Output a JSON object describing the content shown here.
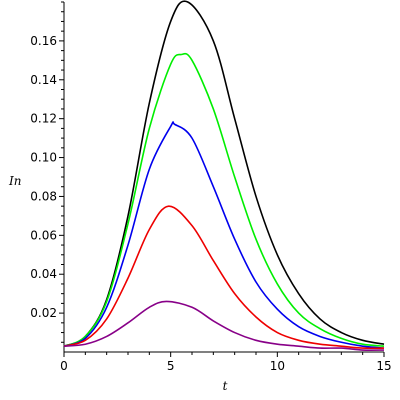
{
  "chart_data": {
    "type": "line",
    "xlabel": "t",
    "ylabel": "In",
    "xlim": [
      0,
      15
    ],
    "ylim": [
      0,
      0.18
    ],
    "x_major_ticks": [
      0,
      5,
      10,
      15
    ],
    "x_minor_step": 1,
    "y_major_ticks": [
      0.02,
      0.04,
      0.06,
      0.08,
      0.1,
      0.12,
      0.14,
      0.16
    ],
    "y_tick_labels": [
      "0.02",
      "0.04",
      "0.06",
      "0.08",
      "0.10",
      "0.12",
      "0.14",
      "0.16"
    ],
    "y_minor_step": 0.005,
    "grid": false,
    "legend": "none",
    "series": [
      {
        "color": "#000000",
        "x": [
          0,
          1,
          2,
          3,
          4,
          5,
          5.8,
          7,
          8,
          9,
          10,
          11,
          12,
          13,
          14,
          15
        ],
        "y": [
          0.003,
          0.008,
          0.027,
          0.07,
          0.128,
          0.17,
          0.18,
          0.16,
          0.12,
          0.08,
          0.05,
          0.03,
          0.017,
          0.01,
          0.006,
          0.004
        ]
      },
      {
        "color": "#00ee00",
        "x": [
          0,
          1,
          2,
          3,
          4,
          5,
          5.5,
          6,
          7,
          8,
          9,
          10,
          11,
          12,
          13,
          14,
          15
        ],
        "y": [
          0.003,
          0.008,
          0.026,
          0.066,
          0.115,
          0.148,
          0.153,
          0.15,
          0.125,
          0.09,
          0.058,
          0.035,
          0.02,
          0.012,
          0.007,
          0.004,
          0.003
        ]
      },
      {
        "color": "#0000ee",
        "x": [
          0,
          1,
          2,
          3,
          4,
          5,
          5.2,
          6,
          7,
          8,
          9,
          10,
          11,
          12,
          13,
          14,
          15
        ],
        "y": [
          0.003,
          0.007,
          0.023,
          0.055,
          0.094,
          0.116,
          0.117,
          0.11,
          0.085,
          0.058,
          0.036,
          0.022,
          0.013,
          0.008,
          0.005,
          0.003,
          0.002
        ]
      },
      {
        "color": "#ee0000",
        "x": [
          0,
          1,
          2,
          3,
          4,
          4.9,
          6,
          7,
          8,
          9,
          10,
          11,
          12,
          13,
          14,
          15
        ],
        "y": [
          0.003,
          0.006,
          0.017,
          0.038,
          0.063,
          0.075,
          0.065,
          0.047,
          0.03,
          0.018,
          0.01,
          0.006,
          0.004,
          0.003,
          0.002,
          0.002
        ]
      },
      {
        "color": "#880088",
        "x": [
          0,
          1,
          2,
          3,
          4,
          4.8,
          6,
          7,
          8,
          9,
          10,
          11,
          12,
          13,
          14,
          15
        ],
        "y": [
          0.003,
          0.004,
          0.008,
          0.015,
          0.023,
          0.026,
          0.023,
          0.016,
          0.01,
          0.006,
          0.004,
          0.003,
          0.002,
          0.002,
          0.001,
          0.001
        ]
      }
    ]
  }
}
